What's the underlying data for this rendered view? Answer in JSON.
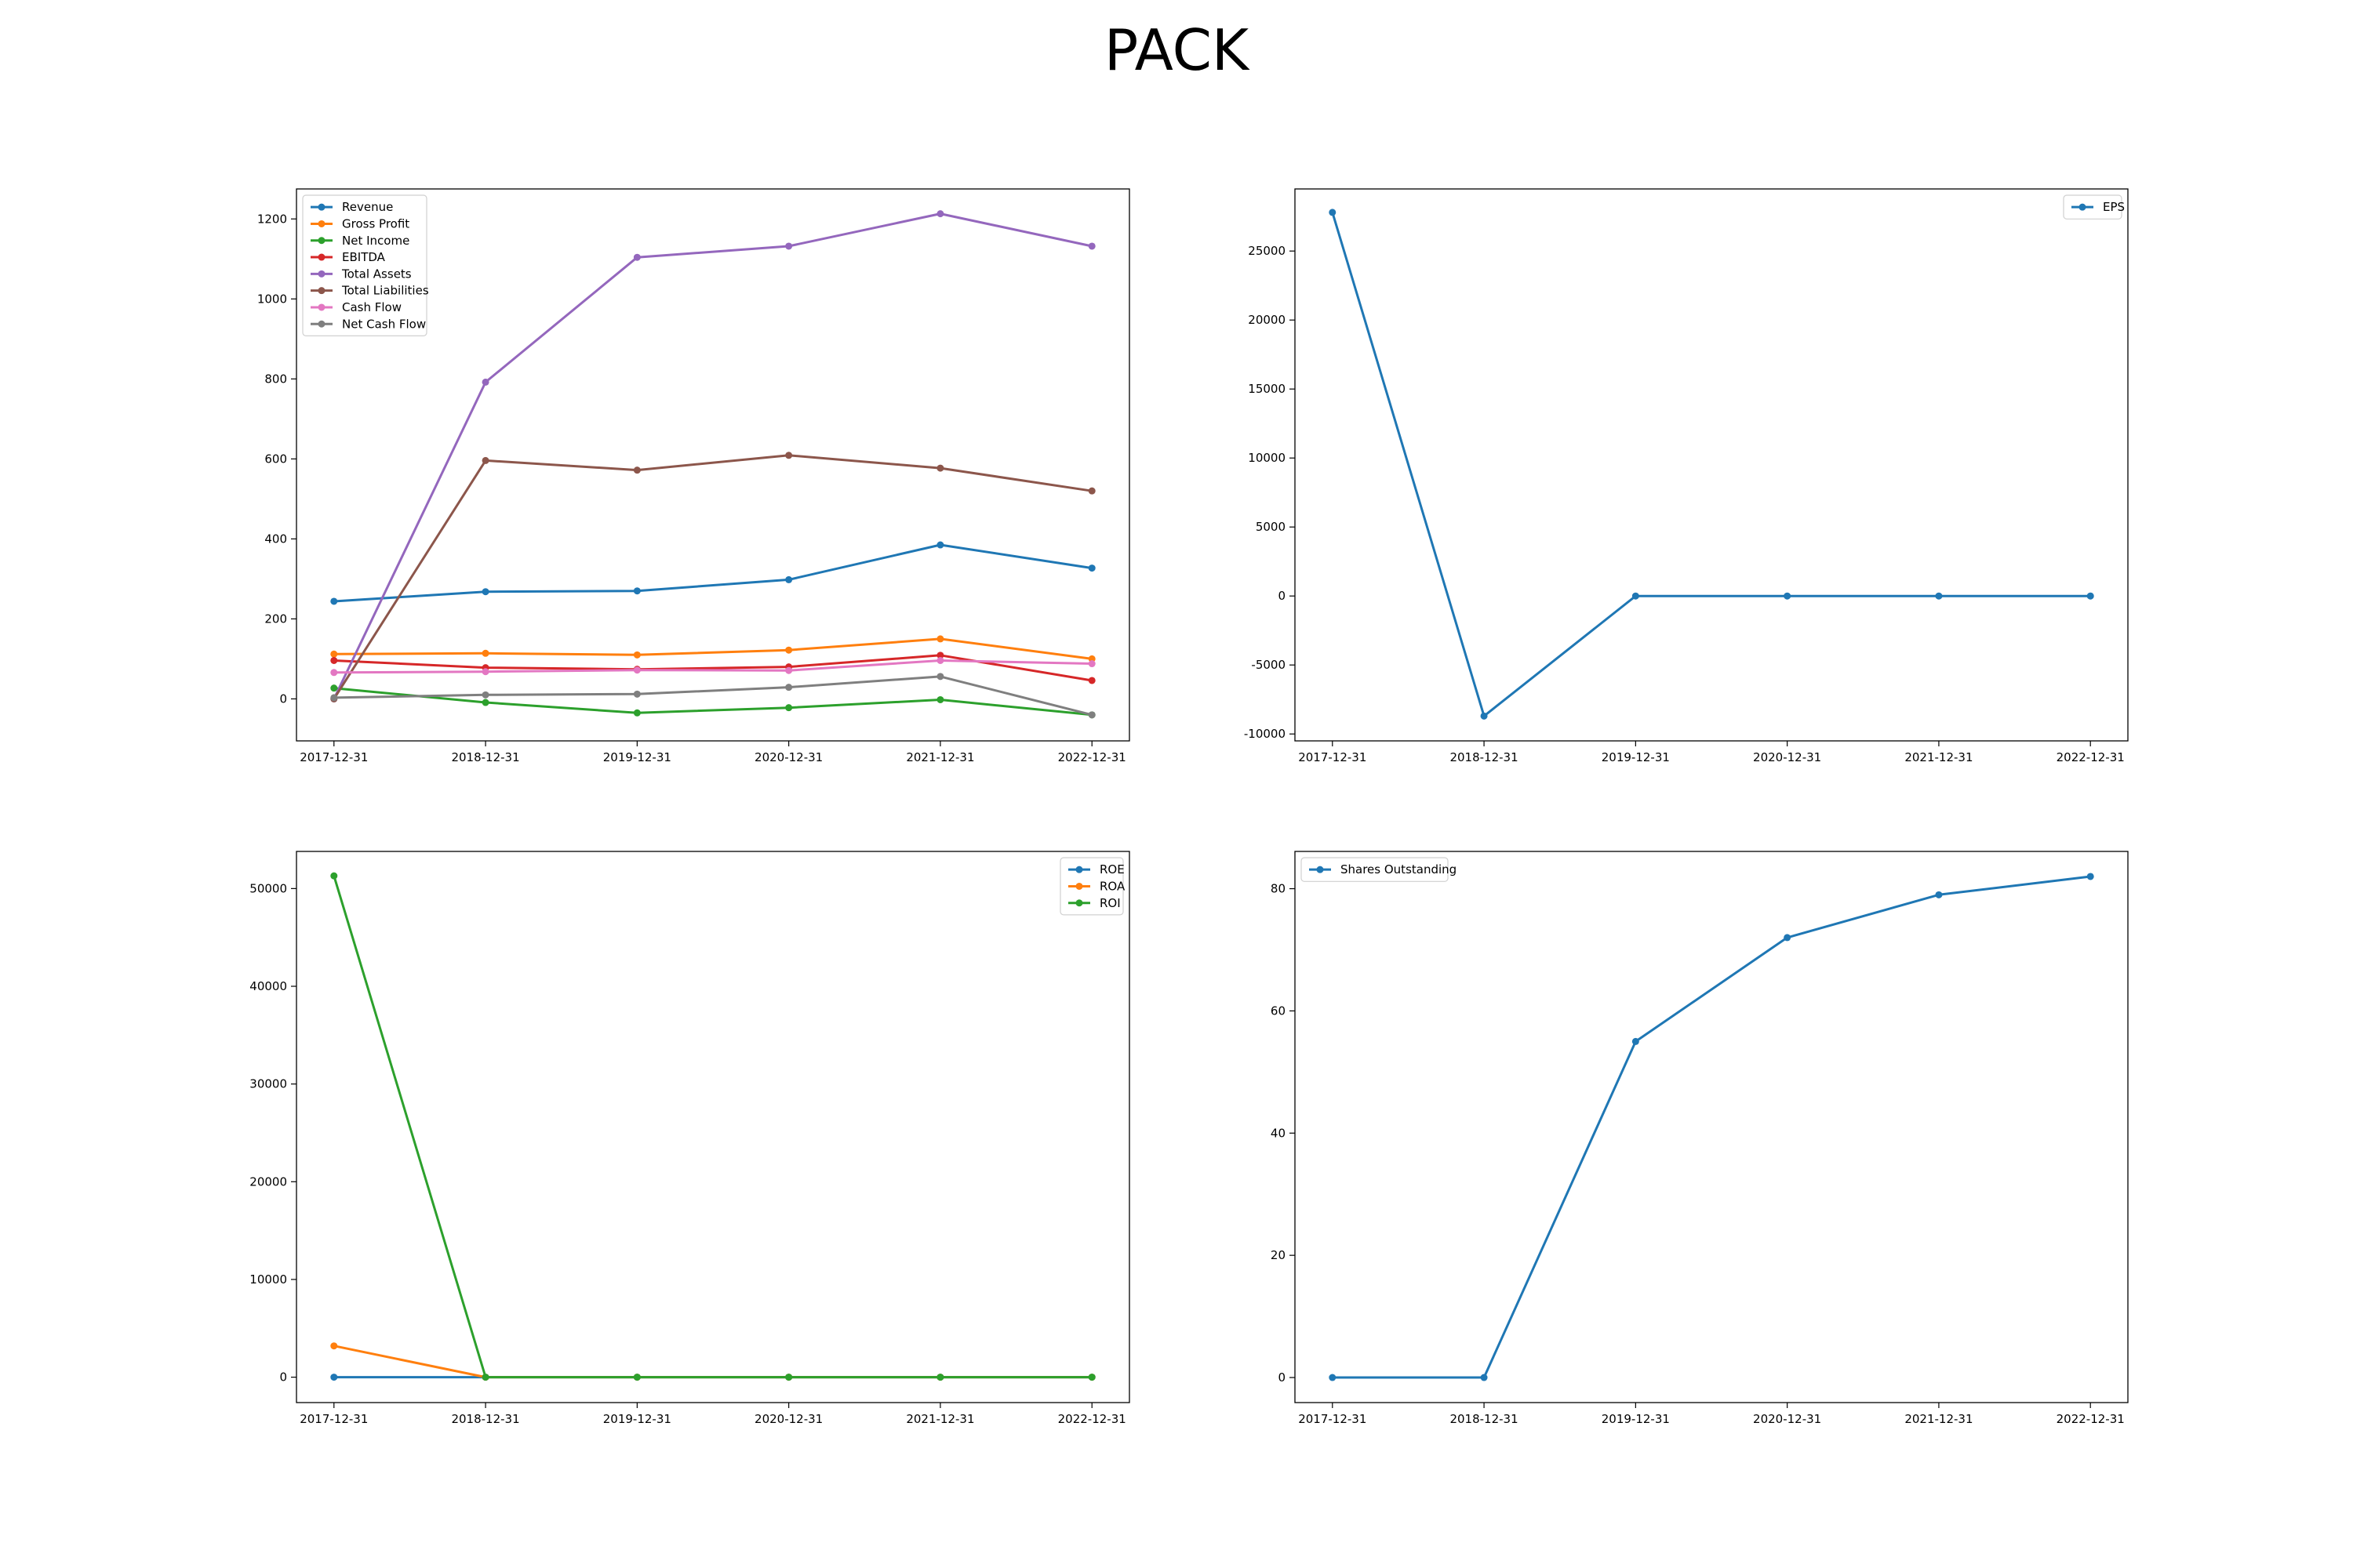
{
  "title": "PACK",
  "chart_data": [
    {
      "type": "line",
      "x": [
        "2017-12-31",
        "2018-12-31",
        "2019-12-31",
        "2020-12-31",
        "2021-12-31",
        "2022-12-31"
      ],
      "ylim": [
        -105,
        1275
      ],
      "yticks": [
        0,
        200,
        400,
        600,
        800,
        1000,
        1200
      ],
      "grid": false,
      "legend": "upper-left",
      "series": [
        {
          "name": "Revenue",
          "color": "#1f77b4",
          "values": [
            244,
            268,
            270,
            298,
            385,
            327
          ]
        },
        {
          "name": "Gross Profit",
          "color": "#ff7f0e",
          "values": [
            112,
            114,
            110,
            122,
            150,
            100
          ]
        },
        {
          "name": "Net Income",
          "color": "#2ca02c",
          "values": [
            27,
            -9,
            -35,
            -22,
            -2,
            -40
          ]
        },
        {
          "name": "EBITDA",
          "color": "#d62728",
          "values": [
            96,
            78,
            74,
            80,
            109,
            46
          ]
        },
        {
          "name": "Total Assets",
          "color": "#9467bd",
          "values": [
            0,
            792,
            1104,
            1132,
            1213,
            1132
          ]
        },
        {
          "name": "Total Liabilities",
          "color": "#8c564b",
          "values": [
            0,
            596,
            572,
            609,
            577,
            520
          ]
        },
        {
          "name": "Cash Flow",
          "color": "#e377c2",
          "values": [
            66,
            68,
            72,
            71,
            96,
            88
          ]
        },
        {
          "name": "Net Cash Flow",
          "color": "#7f7f7f",
          "values": [
            3,
            10,
            12,
            29,
            56,
            -40
          ]
        }
      ]
    },
    {
      "type": "line",
      "x": [
        "2017-12-31",
        "2018-12-31",
        "2019-12-31",
        "2020-12-31",
        "2021-12-31",
        "2022-12-31"
      ],
      "ylim": [
        -10500,
        29500
      ],
      "yticks": [
        -10000,
        -5000,
        0,
        5000,
        10000,
        15000,
        20000,
        25000
      ],
      "grid": false,
      "legend": "upper-right",
      "series": [
        {
          "name": "EPS",
          "color": "#1f77b4",
          "values": [
            27800,
            -8700,
            0,
            0,
            0,
            0
          ]
        }
      ]
    },
    {
      "type": "line",
      "x": [
        "2017-12-31",
        "2018-12-31",
        "2019-12-31",
        "2020-12-31",
        "2021-12-31",
        "2022-12-31"
      ],
      "ylim": [
        -2600,
        53800
      ],
      "yticks": [
        0,
        10000,
        20000,
        30000,
        40000,
        50000
      ],
      "grid": false,
      "legend": "upper-right",
      "series": [
        {
          "name": "ROE",
          "color": "#1f77b4",
          "values": [
            0,
            0,
            0,
            0,
            0,
            0
          ]
        },
        {
          "name": "ROA",
          "color": "#ff7f0e",
          "values": [
            3200,
            0,
            0,
            0,
            0,
            0
          ]
        },
        {
          "name": "ROI",
          "color": "#2ca02c",
          "values": [
            51300,
            0,
            0,
            0,
            0,
            0
          ]
        }
      ]
    },
    {
      "type": "line",
      "x": [
        "2017-12-31",
        "2018-12-31",
        "2019-12-31",
        "2020-12-31",
        "2021-12-31",
        "2022-12-31"
      ],
      "ylim": [
        -4.1,
        86.1
      ],
      "yticks": [
        0,
        20,
        40,
        60,
        80
      ],
      "grid": false,
      "legend": "upper-left",
      "series": [
        {
          "name": "Shares Outstanding",
          "color": "#1f77b4",
          "values": [
            0,
            0,
            55,
            72,
            79,
            82
          ]
        }
      ]
    }
  ]
}
